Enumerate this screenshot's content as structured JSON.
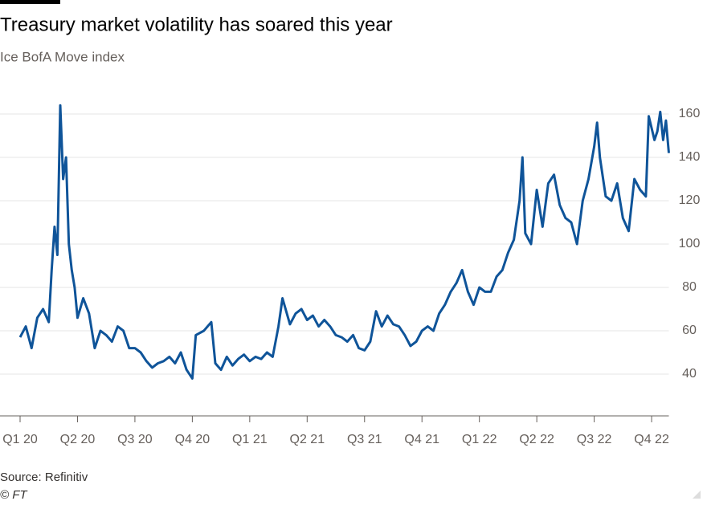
{
  "chart_data": {
    "type": "line",
    "title": "Treasury market volatility has soared this year",
    "subtitle": "Ice BofA Move index",
    "source": "Source: Refinitiv",
    "credit": "© FT",
    "grid": true,
    "series": [
      {
        "name": "Ice BofA Move index",
        "color": "#0f5499",
        "x": [
          0,
          0.1,
          0.2,
          0.3,
          0.4,
          0.5,
          0.55,
          0.6,
          0.65,
          0.7,
          0.75,
          0.8,
          0.85,
          0.9,
          0.95,
          1.0,
          1.1,
          1.2,
          1.3,
          1.4,
          1.5,
          1.6,
          1.7,
          1.8,
          1.9,
          2.0,
          2.1,
          2.2,
          2.3,
          2.4,
          2.5,
          2.6,
          2.7,
          2.8,
          2.9,
          3.0,
          3.06,
          3.2,
          3.33,
          3.4,
          3.5,
          3.6,
          3.7,
          3.8,
          3.9,
          4.0,
          4.1,
          4.2,
          4.3,
          4.4,
          4.5,
          4.57,
          4.7,
          4.8,
          4.9,
          5.0,
          5.1,
          5.2,
          5.3,
          5.4,
          5.5,
          5.6,
          5.7,
          5.8,
          5.9,
          6.0,
          6.1,
          6.2,
          6.3,
          6.4,
          6.5,
          6.6,
          6.7,
          6.8,
          6.9,
          7.0,
          7.1,
          7.2,
          7.3,
          7.4,
          7.5,
          7.6,
          7.7,
          7.8,
          7.9,
          8.0,
          8.1,
          8.2,
          8.3,
          8.4,
          8.5,
          8.6,
          8.7,
          8.75,
          8.8,
          8.9,
          9.0,
          9.1,
          9.2,
          9.3,
          9.4,
          9.5,
          9.6,
          9.7,
          9.8,
          9.9,
          10.0,
          10.05,
          10.1,
          10.2,
          10.3,
          10.4,
          10.5,
          10.6,
          10.7,
          10.8,
          10.9,
          10.95,
          11.05,
          11.1,
          11.15,
          11.2,
          11.25,
          11.3
        ],
        "values": [
          57,
          62,
          52,
          66,
          70,
          64,
          88,
          108,
          95,
          164,
          130,
          140,
          100,
          88,
          80,
          66,
          75,
          68,
          52,
          60,
          58,
          55,
          62,
          60,
          52,
          52,
          50,
          46,
          43,
          45,
          46,
          48,
          45,
          50,
          42,
          38,
          58,
          60,
          64,
          45,
          42,
          48,
          44,
          47,
          49,
          46,
          48,
          47,
          50,
          48,
          62,
          75,
          63,
          68,
          70,
          65,
          67,
          62,
          65,
          62,
          58,
          57,
          55,
          58,
          52,
          51,
          55,
          69,
          62,
          67,
          63,
          62,
          58,
          53,
          55,
          60,
          62,
          60,
          68,
          72,
          78,
          82,
          88,
          78,
          72,
          80,
          78,
          78,
          85,
          88,
          96,
          102,
          120,
          140,
          105,
          100,
          125,
          108,
          128,
          132,
          118,
          112,
          110,
          100,
          120,
          130,
          145,
          156,
          140,
          122,
          120,
          128,
          112,
          106,
          130,
          125,
          122,
          159,
          148,
          152,
          161,
          148,
          157,
          142
        ]
      }
    ],
    "xlim": [
      0,
      11.3
    ],
    "xticks": [
      {
        "value": 0,
        "label": "Q1 20"
      },
      {
        "value": 1,
        "label": "Q2 20"
      },
      {
        "value": 2,
        "label": "Q3 20"
      },
      {
        "value": 3,
        "label": "Q4 20"
      },
      {
        "value": 4,
        "label": "Q1 21"
      },
      {
        "value": 5,
        "label": "Q2 21"
      },
      {
        "value": 6,
        "label": "Q3 21"
      },
      {
        "value": 7,
        "label": "Q4 21"
      },
      {
        "value": 8,
        "label": "Q1 22"
      },
      {
        "value": 9,
        "label": "Q2 22"
      },
      {
        "value": 10,
        "label": "Q3 22"
      },
      {
        "value": 11,
        "label": "Q4 22"
      }
    ],
    "ylim": [
      20,
      165
    ],
    "yticks": [
      40,
      60,
      80,
      100,
      120,
      140,
      160
    ]
  }
}
